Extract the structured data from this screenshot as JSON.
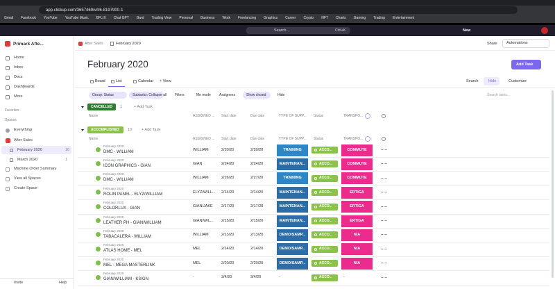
{
  "browser": {
    "url": "app.clickup.com/3657469/v/l/6-8197900-1",
    "bookmarks": [
      "Gmail",
      "Facebook",
      "YouTube",
      "YouTube Music",
      "BFLIX",
      "Chat GPT",
      "Bard",
      "Trading View",
      "Personal",
      "Business",
      "Work",
      "Freelancing",
      "Graphics",
      "Career",
      "Crypto",
      "NFT",
      "Charts",
      "Gaming",
      "Trading",
      "Entertainment"
    ]
  },
  "topbar": {
    "search": "Search...",
    "shortcut": "Ctrl+K",
    "new": "New"
  },
  "sidebar": {
    "workspace": "Primark Afte...",
    "nav": [
      "Home",
      "Inbox",
      "Docs",
      "Dashboards",
      "More"
    ],
    "favorites": "Favorites",
    "spaces": "Spaces",
    "everything": "Everything",
    "space": "After Sales",
    "lists": [
      {
        "name": "February 2020",
        "count": 16
      },
      {
        "name": "March 2020",
        "count": 1
      }
    ],
    "extra": [
      "Machine Order Summary",
      "View all Spaces",
      "Create Space"
    ],
    "invite": "Invite",
    "help": "Help"
  },
  "header": {
    "breadcrumb": [
      "After Sales",
      "February 2020"
    ],
    "share": "Share",
    "automations": "Automations",
    "title": "February 2020",
    "add_task": "Add Task",
    "views": [
      "Board",
      "List",
      "Calendar",
      "+ View"
    ],
    "actions": [
      "Search",
      "Hide",
      "Customize"
    ]
  },
  "toolbar": {
    "group": "Group: Status",
    "subtasks": "Subtasks: Collapse all",
    "filters": "Filters",
    "me_mode": "Me mode",
    "assignees": "Assignees",
    "show_closed": "Show closed",
    "hide": "Hide",
    "search": "Search tasks..."
  },
  "columns": [
    "Name",
    "ASSIGNED ...",
    "Start date",
    "Due date",
    "TYPE OF SUPP...",
    "Status",
    "TRANSPO..."
  ],
  "groups": [
    {
      "status": "CANCELLED",
      "color": "#2e7d32",
      "count": 1,
      "add": "+ Add Task",
      "rows": []
    },
    {
      "status": "ACCOMPLISHED",
      "color": "#8bc34a",
      "count": 10,
      "add": "+ Add Task",
      "rows": [
        {
          "list": "February 2020",
          "name": "DMC - WILLIAM",
          "assigned": "WILLIAM",
          "start": "2/20/20",
          "due": "2/20/20",
          "type": "TRAINING",
          "type_color": "#2f86c6",
          "status": "ACCO...",
          "transport": "COMMUTE",
          "transport_color": "#ec2c8c"
        },
        {
          "list": "February 2020",
          "name": "ICON GRAPHICS - GIAN",
          "assigned": "GIAN",
          "start": "2/24/20",
          "due": "2/24/20",
          "type": "MAINTENAN...",
          "type_color": "#2c6da8",
          "status": "ACCO...",
          "transport": "COMMUTE",
          "transport_color": "#ec2c8c"
        },
        {
          "list": "February 2020",
          "name": "DMC - WILLIAM",
          "assigned": "WILLIAM",
          "start": "2/26/20",
          "due": "2/27/20",
          "type": "TRAINING",
          "type_color": "#2f86c6",
          "status": "ACCO...",
          "transport": "COMMUTE",
          "transport_color": "#ec2c8c"
        },
        {
          "list": "February 2020",
          "name": "ROLIN PANEL - ELYZ/WILLIAM",
          "assigned": "ELYZ/WILL...",
          "start": "2/14/20",
          "due": "2/14/20",
          "type": "MAINTENAN...",
          "type_color": "#2c6da8",
          "status": "ACCO...",
          "transport": "ERTIGA",
          "transport_color": "#ec2c8c"
        },
        {
          "list": "February 2020",
          "name": "COLORLUX - GIAN",
          "assigned": "GIAN/JAKE",
          "start": "2/17/20",
          "due": "2/17/20",
          "type": "MAINTENAN...",
          "type_color": "#2c6da8",
          "status": "ACCO...",
          "transport": "ERTIGA",
          "transport_color": "#ec2c8c"
        },
        {
          "list": "February 2020",
          "name": "LEATHER PH - GIAN/WILLIAM",
          "assigned": "GIAN/WIL...",
          "start": "2/15/20",
          "due": "2/15/20",
          "type": "MAINTENAN...",
          "type_color": "#2c6da8",
          "status": "ACCO...",
          "transport": "ERTIGA",
          "transport_color": "#ec2c8c"
        },
        {
          "list": "February 2020",
          "name": "TABACALERA - WILLIAM",
          "assigned": "WILLIAM",
          "start": "2/13/20",
          "due": "2/13/20",
          "type": "DEMO/SAMP...",
          "type_color": "#2c6da8",
          "status": "ACCO...",
          "transport": "N/A",
          "transport_color": "#ec2c8c"
        },
        {
          "list": "February 2020",
          "name": "ATLAS HOME - MEL",
          "assigned": "MEL",
          "start": "2/14/20",
          "due": "2/14/20",
          "type": "DEMO/SAMP...",
          "type_color": "#2c6da8",
          "status": "ACCO...",
          "transport": "N/A",
          "transport_color": "#ec2c8c"
        },
        {
          "list": "February 2020",
          "name": "MEL - MEGA MASTERLINK",
          "assigned": "MEL",
          "start": "2/20/20",
          "due": "2/20/20",
          "type": "DEMO/SAMP...",
          "type_color": "#2c6da8",
          "status": "ACCO...",
          "transport": "N/A",
          "transport_color": "#ec2c8c"
        },
        {
          "list": "February 2020",
          "name": "GIAN/WILLIAM - KSIGN",
          "assigned": "-",
          "start": "3/4/20",
          "due": "3/4/20",
          "type": "-",
          "status": "ACCO...",
          "transport": "-"
        }
      ]
    }
  ]
}
